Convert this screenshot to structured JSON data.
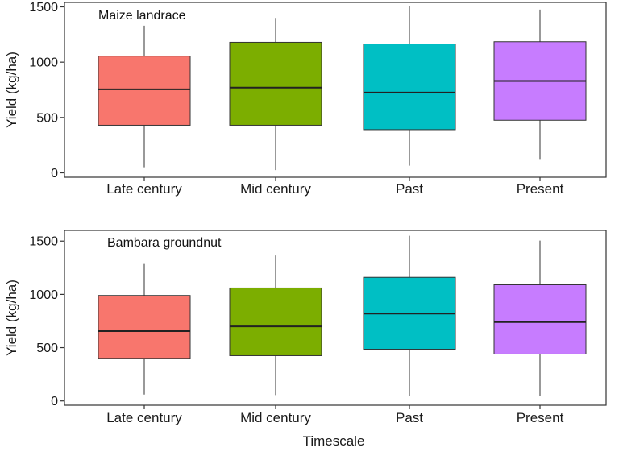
{
  "chart_data": [
    {
      "type": "boxplot",
      "title": "Maize landrace",
      "xlabel": "",
      "ylabel": "Yield (kg/ha)",
      "ylim": [
        -40,
        1540
      ],
      "yticks": [
        0,
        500,
        1000,
        1500
      ],
      "categories": [
        "Late century",
        "Mid century",
        "Past",
        "Present"
      ],
      "colors": [
        "#f8766d",
        "#7cae00",
        "#00bfc4",
        "#c77cff"
      ],
      "boxes": [
        {
          "min": 50,
          "q1": 430,
          "median": 755,
          "q3": 1055,
          "max": 1330
        },
        {
          "min": 25,
          "q1": 430,
          "median": 770,
          "q3": 1180,
          "max": 1400
        },
        {
          "min": 65,
          "q1": 390,
          "median": 725,
          "q3": 1165,
          "max": 1510
        },
        {
          "min": 125,
          "q1": 475,
          "median": 830,
          "q3": 1185,
          "max": 1475
        }
      ]
    },
    {
      "type": "boxplot",
      "title": "Bambara groundnut",
      "xlabel": "Timescale",
      "ylabel": "Yield (kg/ha)",
      "ylim": [
        -40,
        1600
      ],
      "yticks": [
        0,
        500,
        1000,
        1500
      ],
      "categories": [
        "Late century",
        "Mid century",
        "Past",
        "Present"
      ],
      "colors": [
        "#f8766d",
        "#7cae00",
        "#00bfc4",
        "#c77cff"
      ],
      "boxes": [
        {
          "min": 60,
          "q1": 400,
          "median": 655,
          "q3": 990,
          "max": 1285
        },
        {
          "min": 55,
          "q1": 425,
          "median": 700,
          "q3": 1060,
          "max": 1365
        },
        {
          "min": 45,
          "q1": 485,
          "median": 820,
          "q3": 1160,
          "max": 1550
        },
        {
          "min": 45,
          "q1": 440,
          "median": 740,
          "q3": 1090,
          "max": 1505
        }
      ]
    }
  ]
}
